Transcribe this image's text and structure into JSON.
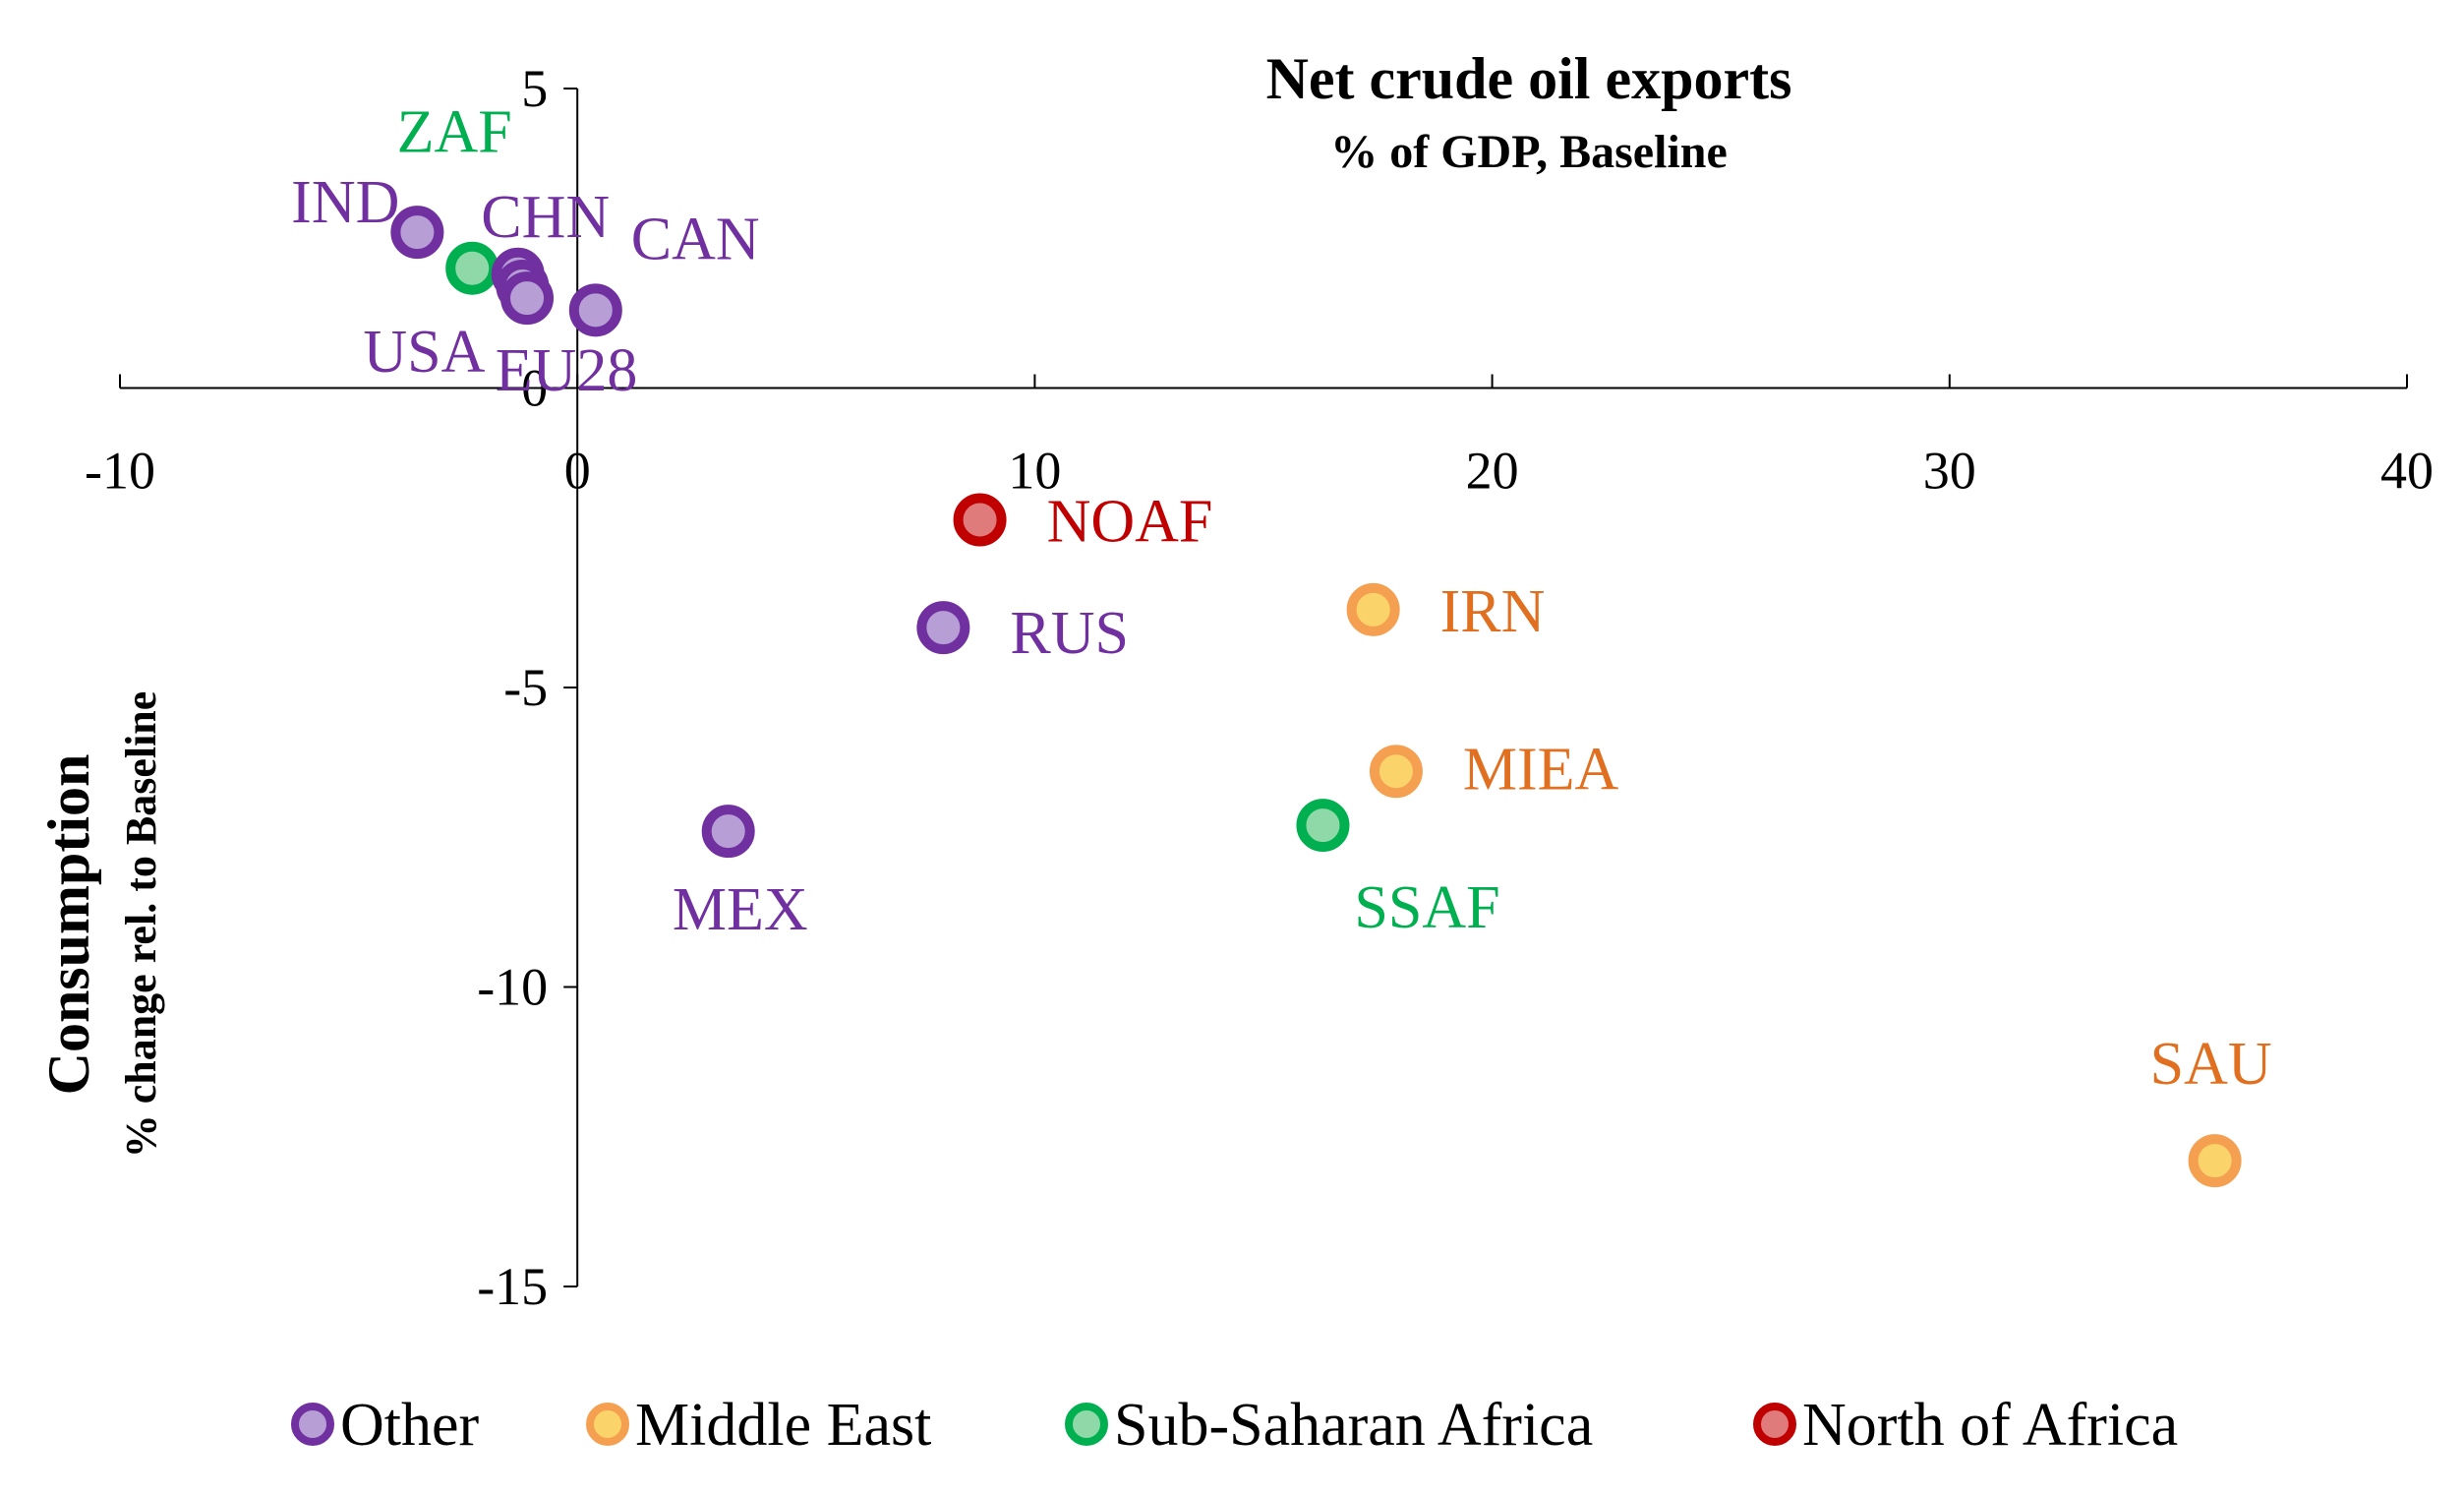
{
  "chart_data": {
    "type": "scatter",
    "title": "Net crude oil exports",
    "subtitle": "% of GDP, Baseline",
    "xlabel": "",
    "ylabel": "Consumption",
    "ylabel_sub": "% change rel. to Baseline",
    "xlim": [
      -10,
      40
    ],
    "ylim": [
      -15,
      5
    ],
    "xticks": [
      -10,
      0,
      10,
      20,
      30,
      40
    ],
    "yticks": [
      5,
      0,
      -5,
      -10,
      -15
    ],
    "grid": false,
    "legend_position": "bottom",
    "groups": [
      {
        "name": "Other",
        "edge": "#7030a0",
        "fill": "#b79fd6"
      },
      {
        "name": "Middle East",
        "edge": "#f4a050",
        "fill": "#fbd36b"
      },
      {
        "name": "Sub-Saharan Africa",
        "edge": "#00b050",
        "fill": "#8fd9a8"
      },
      {
        "name": "North of Africa",
        "edge": "#c00000",
        "fill": "#e07b7b"
      }
    ],
    "points": [
      {
        "label": "IND",
        "x": -3.5,
        "y": 2.6,
        "group": 0,
        "label_color": "#7030a0"
      },
      {
        "label": "ZAF",
        "x": -2.3,
        "y": 2.0,
        "group": 2,
        "label_color": "#00b050"
      },
      {
        "label": "CHN",
        "x": -1.3,
        "y": 1.9,
        "group": 0,
        "label_color": "#7030a0"
      },
      {
        "label": "USA",
        "x": -1.2,
        "y": 1.7,
        "group": 0,
        "label_color": "#7030a0"
      },
      {
        "label": "EU28",
        "x": -1.1,
        "y": 1.5,
        "group": 0,
        "label_color": "#7030a0"
      },
      {
        "label": "CAN",
        "x": 0.4,
        "y": 1.3,
        "group": 0,
        "label_color": "#7030a0"
      },
      {
        "label": "NOAF",
        "x": 8.8,
        "y": -2.2,
        "group": 3,
        "label_color": "#c00000"
      },
      {
        "label": "RUS",
        "x": 8.0,
        "y": -4.0,
        "group": 0,
        "label_color": "#7030a0"
      },
      {
        "label": "IRN",
        "x": 17.4,
        "y": -3.7,
        "group": 1,
        "label_color": "#e07020"
      },
      {
        "label": "MIEA",
        "x": 17.9,
        "y": -6.4,
        "group": 1,
        "label_color": "#e07020"
      },
      {
        "label": "SSAF",
        "x": 16.3,
        "y": -7.3,
        "group": 2,
        "label_color": "#00b050"
      },
      {
        "label": "MEX",
        "x": 3.3,
        "y": -7.4,
        "group": 0,
        "label_color": "#7030a0"
      },
      {
        "label": "SAU",
        "x": 35.8,
        "y": -12.9,
        "group": 1,
        "label_color": "#e07020"
      }
    ]
  }
}
